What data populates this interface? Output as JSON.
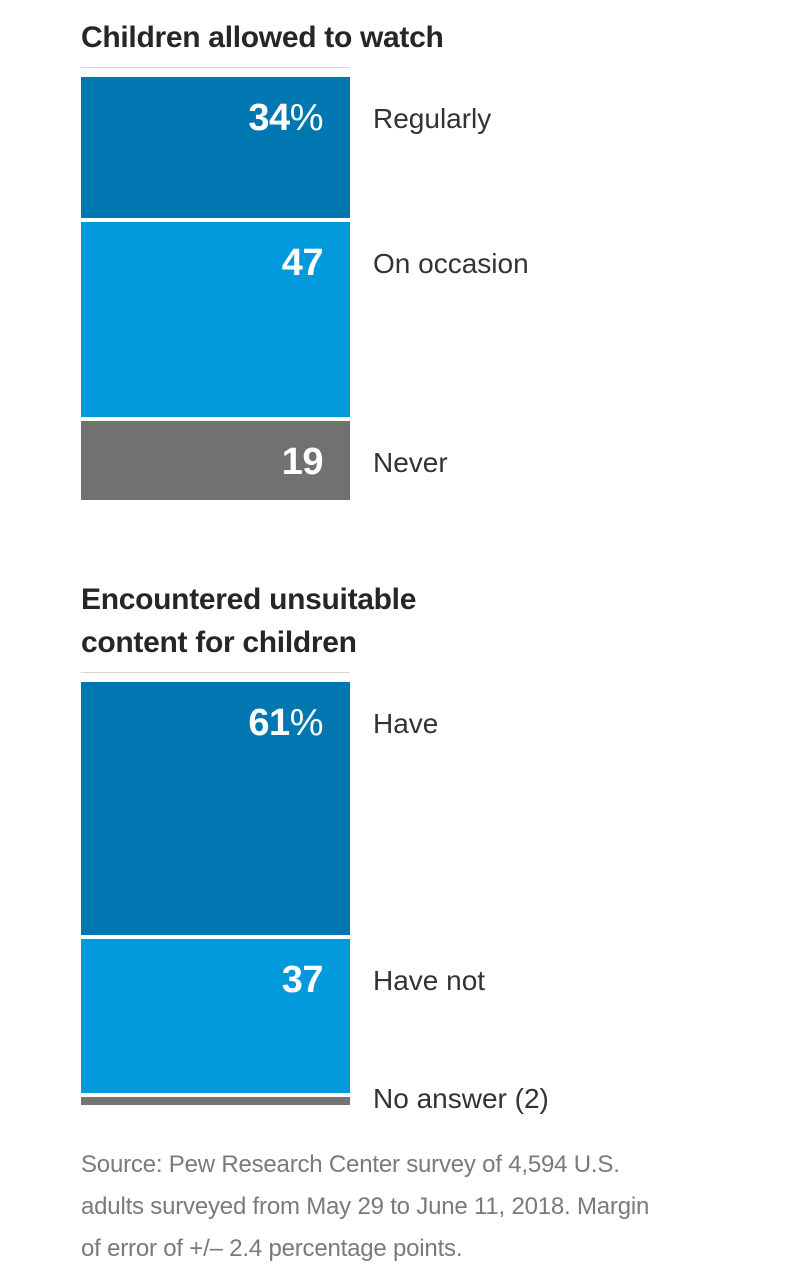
{
  "page": {
    "background": "#ffffff"
  },
  "chart_data": [
    {
      "type": "bar",
      "subtype": "stacked-vertical-percentage",
      "title": "Children allowed to watch",
      "title_lines": [
        "Children allowed to watch"
      ],
      "unit": "%",
      "total": 100,
      "categories": [
        "Regularly",
        "On occasion",
        "Never"
      ],
      "values": [
        34,
        47,
        19
      ],
      "segments": [
        {
          "label": "Regularly",
          "value": 34,
          "display": "34%",
          "color": "#0077b0"
        },
        {
          "label": "On occasion",
          "value": 47,
          "display": "47",
          "color": "#0099db"
        },
        {
          "label": "Never",
          "value": 19,
          "display": "19",
          "color": "#717171"
        }
      ]
    },
    {
      "type": "bar",
      "subtype": "stacked-vertical-percentage",
      "title": "Encountered unsuitable content for children",
      "title_lines": [
        "Encountered unsuitable",
        "content for children"
      ],
      "unit": "%",
      "total": 100,
      "categories": [
        "Have",
        "Have not",
        "No answer (2)"
      ],
      "values": [
        61,
        37,
        2
      ],
      "segments": [
        {
          "label": "Have",
          "value": 61,
          "display": "61%",
          "color": "#0077b0"
        },
        {
          "label": "Have not",
          "value": 37,
          "display": "37",
          "color": "#0099db"
        },
        {
          "label": "No answer (2)",
          "value": 2,
          "display": "",
          "color": "#757575"
        }
      ]
    }
  ],
  "source_note": {
    "lines": [
      "Source: Pew Research Center survey of 4,594 U.S.",
      "adults surveyed from May 29 to June 11, 2018. Margin",
      "of error of +/– 2.4 percentage points."
    ],
    "full_text": "Source: Pew Research Center survey of 4,594 U.S. adults surveyed from May 29 to June 11, 2018. Margin of error of +/– 2.4 percentage points."
  },
  "layout_hints": {
    "hairline_color": "#d8d8d8",
    "value_label_color": "#ffffff",
    "category_label_color": "#333333",
    "title_color": "#262626",
    "source_color": "#7a7a7a"
  }
}
